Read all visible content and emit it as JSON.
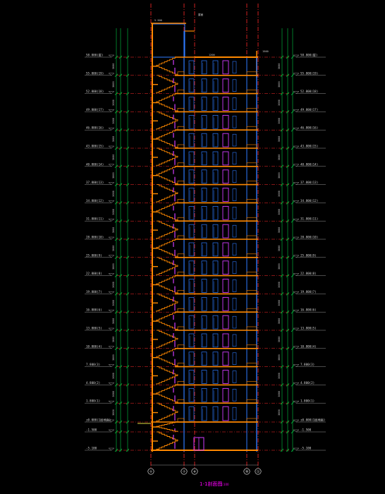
{
  "drawing": {
    "title": "1-1剖面图",
    "scale": "1:100",
    "axis_bubbles": [
      "①",
      "⑦",
      "⑧",
      "⑳",
      "⑴"
    ],
    "top_note_left": "5.500",
    "top_note_right": "屋面",
    "roof_note_left": "1200",
    "roof_note_right": "1500",
    "elevations_left": [
      "58.800(屋)",
      "55.800(19)",
      "52.800(18)",
      "49.800(17)",
      "46.800(16)",
      "43.800(15)",
      "40.800(14)",
      "37.800(13)",
      "34.800(12)",
      "31.800(11)",
      "28.800(10)",
      "25.800(9)",
      "22.800(8)",
      "19.800(7)",
      "16.800(6)",
      "13.800(5)",
      "10.800(4)",
      "7.800(3)",
      "4.800(2)",
      "1.800(1)",
      "±0.000(1层地面)",
      "-1.500",
      "-5.100"
    ],
    "elevations_right": [
      "58.800(屋)",
      "55.800(19)",
      "52.800(18)",
      "49.800(17)",
      "46.800(16)",
      "43.800(15)",
      "40.800(14)",
      "37.800(13)",
      "34.800(12)",
      "31.800(11)",
      "28.800(10)",
      "25.800(9)",
      "22.800(8)",
      "19.800(7)",
      "16.800(6)",
      "13.800(5)",
      "10.800(4)",
      "7.800(3)",
      "4.800(2)",
      "1.800(1)",
      "±0.000(1层地面)",
      "-1.500",
      "-5.100"
    ],
    "story_dim": "3000",
    "colors": {
      "background": "#000000",
      "slab": "#ff8800",
      "grid": "#ff2a2a",
      "wall": "#2f7bff",
      "stair": "#ff8800",
      "door": "#d23cff",
      "dim_left": "#00cc44",
      "dim_right": "#00cc44",
      "text": "#d8d8d8",
      "title": "#ff00ff"
    }
  }
}
